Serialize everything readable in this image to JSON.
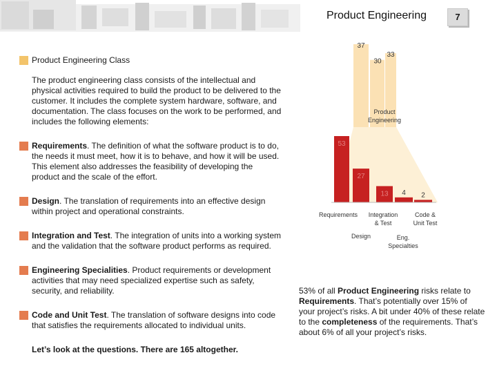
{
  "header": {
    "title": "Product Engineering",
    "page_number": "7"
  },
  "content": {
    "class_heading": "Product Engineering Class",
    "intro": "The product engineering class consists of the intellectual and physical activities required to build the product to be delivered to the customer. It includes the complete system hardware, software, and documentation. The class focuses on the work to be performed, and includes the following elements:",
    "bullets": [
      {
        "term": "Requirements",
        "text": ". The definition of what the software product is to do, the needs it must meet, how it is to behave, and how it will be used. This element also addresses the feasibility of developing the product and the scale of the effort."
      },
      {
        "term": "Design",
        "text": ". The translation of requirements into an effective design within project and operational constraints."
      },
      {
        "term": "Integration and Test",
        "text": ". The integration of units into a working system and the validation that the software product performs as required."
      },
      {
        "term": "Engineering Specialities",
        "text": ". Product requirements or development activities that may need specialized expertise such as safety, security, and reliability."
      },
      {
        "term": "Code and Unit Test",
        "text": ". The translation of software designs into code that satisfies the requirements allocated to individual units."
      }
    ],
    "closing": "Let’s look at the questions. There are 165 altogether."
  },
  "summary": {
    "p1": "53% of all ",
    "b1": "Product Engineering",
    "p2": " risks relate to ",
    "b2": "Requirements",
    "p3": ". That’s potentially over 15% of your project’s risks. A bit under 40% of these relate to the ",
    "b3": "completeness",
    "p4": " of the requirements. That’s about 6% of all your project’s risks."
  },
  "colors": {
    "gold_bar": "#fbe1b4",
    "red_bar": "#c62121",
    "funnel": "#fdf0d6",
    "accent_square": "#e47c4f",
    "heading_square": "#f3c46b"
  },
  "chart_data": [
    {
      "type": "bar",
      "series": [
        {
          "categories": [
            "",
            "",
            ""
          ],
          "values": [
            37,
            30,
            33
          ]
        }
      ],
      "center_label": "Product Engineering",
      "ylim": [
        0,
        37
      ]
    },
    {
      "type": "bar",
      "categories": [
        "Requirements",
        "Design",
        "Integration & Test",
        "Eng. Specialties",
        "Code & Unit Test"
      ],
      "values": [
        53,
        27,
        13,
        4,
        2
      ],
      "ylim": [
        0,
        53
      ]
    }
  ]
}
